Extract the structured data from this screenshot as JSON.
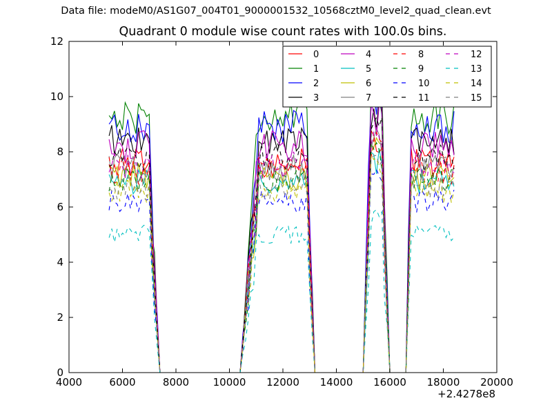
{
  "header": {
    "suptitle": "Data file: modeM0/AS1G07_004T01_9000001532_10568cztM0_level2_quad_clean.evt",
    "title": "Quadrant 0 module wise count rates with 100.0s bins."
  },
  "chart_data": {
    "type": "line",
    "title": "Quadrant 0 module wise count rates with 100.0s bins.",
    "xlabel": "",
    "ylabel": "",
    "xlim": [
      4000,
      20000
    ],
    "ylim": [
      0,
      12
    ],
    "x_offset_label": "+2.4278e8",
    "xticks": [
      4000,
      6000,
      8000,
      10000,
      12000,
      14000,
      16000,
      18000,
      20000
    ],
    "xtick_labels": [
      "4000",
      "6000",
      "8000",
      "10000",
      "12000",
      "14000",
      "16000",
      "18000",
      "20000"
    ],
    "yticks": [
      0,
      2,
      4,
      6,
      8,
      10,
      12
    ],
    "ytick_labels": [
      "0",
      "2",
      "4",
      "6",
      "8",
      "10",
      "12"
    ],
    "grid": false,
    "legend_position": "top-right",
    "legend_columns": 4,
    "segments": [
      {
        "start": 5500,
        "end": 7000,
        "fall": [
          7100,
          7200,
          7300
        ]
      },
      {
        "rise": [
          10500,
          10600,
          10700,
          10800,
          10900,
          11000
        ],
        "start": 11100,
        "end": 12900,
        "fall": [
          13000,
          13100
        ]
      },
      {
        "rise": [
          15100,
          15200
        ],
        "start": 15300,
        "end": 15700,
        "fall": [
          15800,
          15900
        ]
      },
      {
        "rise": [
          16700
        ],
        "start": 16800,
        "end": 18400,
        "fall": []
      }
    ],
    "series": [
      {
        "name": "0",
        "color": "#ff0000",
        "dash": "solid",
        "level": 7.6
      },
      {
        "name": "1",
        "color": "#008000",
        "dash": "solid",
        "level": 9.3
      },
      {
        "name": "2",
        "color": "#0000ff",
        "dash": "solid",
        "level": 8.9
      },
      {
        "name": "3",
        "color": "#000000",
        "dash": "solid",
        "level": 8.4
      },
      {
        "name": "4",
        "color": "#bf00bf",
        "dash": "solid",
        "level": 8.2
      },
      {
        "name": "5",
        "color": "#00bfbf",
        "dash": "solid",
        "level": 6.9
      },
      {
        "name": "6",
        "color": "#bfbf00",
        "dash": "solid",
        "level": 7.1
      },
      {
        "name": "7",
        "color": "#808080",
        "dash": "solid",
        "level": 7.4
      },
      {
        "name": "8",
        "color": "#ff0000",
        "dash": "dashed",
        "level": 7.3
      },
      {
        "name": "9",
        "color": "#008000",
        "dash": "dashed",
        "level": 7.0
      },
      {
        "name": "10",
        "color": "#0000ff",
        "dash": "dashed",
        "level": 6.2
      },
      {
        "name": "11",
        "color": "#000000",
        "dash": "dashed",
        "level": 7.8
      },
      {
        "name": "12",
        "color": "#bf00bf",
        "dash": "dashed",
        "level": 7.5
      },
      {
        "name": "13",
        "color": "#00bfbf",
        "dash": "dashed",
        "level": 5.0
      },
      {
        "name": "14",
        "color": "#bfbf00",
        "dash": "dashed",
        "level": 6.6
      },
      {
        "name": "15",
        "color": "#808080",
        "dash": "dashed",
        "level": 6.7
      }
    ]
  }
}
